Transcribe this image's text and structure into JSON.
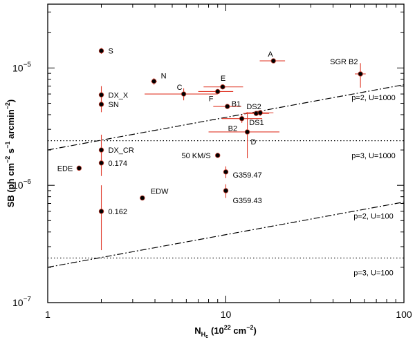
{
  "chart_data": {
    "type": "scatter",
    "xscale": "log",
    "yscale": "log",
    "xlim": [
      1,
      100
    ],
    "ylim": [
      1e-07,
      3.5e-05
    ],
    "xlabel": {
      "main": "N",
      "sub": "H",
      "subsub": "c",
      "unitpre": "(10",
      "unitexp": "22",
      "unitpost": " cm",
      "unitexp2": "−2",
      "unitclose": ")"
    },
    "ylabel": {
      "pre": "SB (ph cm",
      "e1": "−2",
      "mid": " s",
      "e2": "−1",
      "post": " arcmin",
      "e3": "−2",
      "close": ")"
    },
    "xticks": [
      {
        "value": 1,
        "label": "1"
      },
      {
        "value": 10,
        "label": "10"
      },
      {
        "value": 100,
        "label": "100"
      }
    ],
    "yticks": [
      {
        "value": 1e-05,
        "base": "10",
        "exp": "−5"
      },
      {
        "value": 1e-06,
        "base": "10",
        "exp": "−6"
      },
      {
        "value": 1e-07,
        "base": "10",
        "exp": "−7"
      }
    ],
    "points": [
      {
        "name": "S",
        "x": 2.0,
        "y": 1.4e-05,
        "xerr": [
          2.0,
          2.0
        ],
        "yerr": [
          1.32e-05,
          1.48e-05
        ]
      },
      {
        "name": "N",
        "x": 3.95,
        "y": 7.7e-06,
        "xerr": [
          3.8,
          4.1
        ],
        "yerr": [
          7.2e-06,
          8.2e-06
        ]
      },
      {
        "name": "C",
        "x": 5.8,
        "y": 6e-06,
        "xerr": [
          3.5,
          9.0
        ],
        "yerr": [
          5.3e-06,
          6.7e-06
        ]
      },
      {
        "name": "E",
        "x": 9.6,
        "y": 6.9e-06,
        "xerr": [
          7.5,
          12.5
        ],
        "yerr": [
          6.6e-06,
          7.2e-06
        ]
      },
      {
        "name": "F",
        "x": 9.0,
        "y": 6.3e-06,
        "xerr": [
          7.0,
          11.0
        ],
        "yerr": [
          6.1e-06,
          6.5e-06
        ]
      },
      {
        "name": "A",
        "x": 18.5,
        "y": 1.15e-05,
        "xerr": [
          15.5,
          21.5
        ],
        "yerr": [
          1.1e-05,
          1.2e-05
        ]
      },
      {
        "name": "SGR B2",
        "x": 57,
        "y": 8.9e-06,
        "xerr": [
          53,
          61
        ],
        "yerr": [
          6.8e-06,
          1.1e-05
        ]
      },
      {
        "name": "DX_X",
        "x": 2.0,
        "y": 5.9e-06,
        "xerr": [
          2.0,
          2.0
        ],
        "yerr": [
          4.8e-06,
          7e-06
        ]
      },
      {
        "name": "SN",
        "x": 2.0,
        "y": 4.9e-06,
        "xerr": [
          2.0,
          2.0
        ],
        "yerr": [
          4.2e-06,
          5.6e-06
        ]
      },
      {
        "name": "B1",
        "x": 10.2,
        "y": 4.7e-06,
        "xerr": [
          8.5,
          12.2
        ],
        "yerr": [
          4.5e-06,
          4.9e-06
        ]
      },
      {
        "name": "DS2",
        "x": 14.8,
        "y": 4.1e-06,
        "xerr": [
          12.5,
          17.5
        ],
        "yerr": [
          3.9e-06,
          4.3e-06
        ]
      },
      {
        "name": "DS1",
        "x": 15.6,
        "y": 4.15e-06,
        "xerr": [
          13.0,
          18.5
        ],
        "yerr": [
          3.9e-06,
          4.4e-06
        ]
      },
      {
        "name": "B2",
        "x": 12.3,
        "y": 3.7e-06,
        "xerr": [
          9.5,
          16.0
        ],
        "yerr": [
          3.4e-06,
          4e-06
        ]
      },
      {
        "name": "D",
        "x": 13.2,
        "y": 2.85e-06,
        "xerr": [
          8.0,
          20.0
        ],
        "yerr": [
          1.7e-06,
          4.2e-06
        ]
      },
      {
        "name": "DX_CR",
        "x": 2.0,
        "y": 2e-06,
        "xerr": [
          2.0,
          2.0
        ],
        "yerr": [
          1.4e-06,
          2.7e-06
        ]
      },
      {
        "name": "0.174",
        "x": 2.0,
        "y": 1.55e-06,
        "xerr": [
          2.0,
          2.0
        ],
        "yerr": [
          1.2e-06,
          1.9e-06
        ]
      },
      {
        "name": "EDE",
        "x": 1.5,
        "y": 1.4e-06,
        "xerr": [
          1.5,
          1.5
        ],
        "yerr": [
          1.4e-06,
          1.4e-06
        ]
      },
      {
        "name": "50 KM/S",
        "x": 9.0,
        "y": 1.8e-06,
        "xerr": [
          9.0,
          9.0
        ],
        "yerr": [
          1.8e-06,
          1.8e-06
        ]
      },
      {
        "name": "G359.47",
        "x": 10.0,
        "y": 1.3e-06,
        "xerr": [
          10.0,
          10.0
        ],
        "yerr": [
          1.15e-06,
          1.45e-06
        ]
      },
      {
        "name": "G359.43",
        "x": 10.0,
        "y": 9e-07,
        "xerr": [
          10.0,
          10.0
        ],
        "yerr": [
          7.8e-07,
          1.02e-06
        ]
      },
      {
        "name": "EDW",
        "x": 3.4,
        "y": 7.8e-07,
        "xerr": [
          3.4,
          3.4
        ],
        "yerr": [
          7.8e-07,
          7.8e-07
        ]
      },
      {
        "name": "0.162",
        "x": 2.0,
        "y": 6e-07,
        "xerr": [
          2.0,
          2.0
        ],
        "yerr": [
          2.8e-07,
          1e-06
        ]
      }
    ],
    "reference_lines": [
      {
        "label": "p=2, U=1000",
        "style": "dash-dot",
        "from": [
          1,
          2e-06
        ],
        "to": [
          100,
          7.2e-06
        ]
      },
      {
        "label": "p=3, U=1000",
        "style": "dotted",
        "from": [
          1,
          2.4e-06
        ],
        "to": [
          100,
          2.4e-06
        ]
      },
      {
        "label": "p=2, U=100",
        "style": "dash-dot",
        "from": [
          1,
          2e-07
        ],
        "to": [
          100,
          7.2e-07
        ]
      },
      {
        "label": "p=3, U=100",
        "style": "dotted",
        "from": [
          1,
          2.4e-07
        ],
        "to": [
          100,
          2.4e-07
        ]
      }
    ],
    "colors": {
      "errorbar": "#e03a2a",
      "marker": "#000000",
      "axes": "#000000"
    }
  }
}
